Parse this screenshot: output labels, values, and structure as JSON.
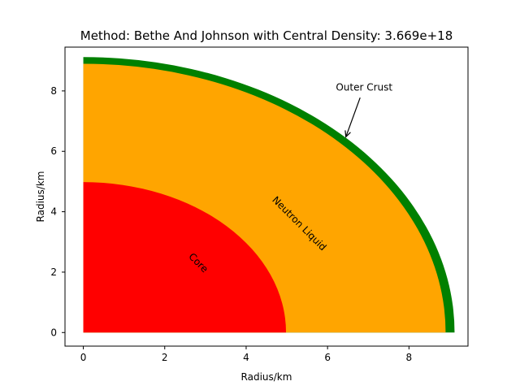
{
  "chart_data": {
    "type": "area",
    "title": "Method: Bethe And Johnson with Central Density: 3.669e+18",
    "xlabel": "Radius/km",
    "ylabel": "Radius/km",
    "xlim": [
      -0.45,
      9.45
    ],
    "ylim": [
      -0.45,
      9.45
    ],
    "xticks": [
      0,
      2,
      4,
      6,
      8
    ],
    "yticks": [
      0,
      2,
      4,
      6,
      8
    ],
    "grid": false,
    "layers": [
      {
        "name": "Outer Crust",
        "inner_radius": 8.9,
        "outer_radius": 9.12,
        "color": "#008000"
      },
      {
        "name": "Neutron Liquid",
        "inner_radius": 4.98,
        "outer_radius": 8.9,
        "color": "#ffa500"
      },
      {
        "name": "Core",
        "inner_radius": 0,
        "outer_radius": 4.98,
        "color": "#ff0000"
      }
    ],
    "annotations": [
      {
        "text": "Core",
        "x": 2.82,
        "y": 2.3,
        "rotation": -45
      },
      {
        "text": "Neutron Liquid",
        "x": 5.3,
        "y": 3.6,
        "rotation": -45
      },
      {
        "text": "Outer Crust",
        "x": 6.9,
        "y": 8.1,
        "arrow_to": [
          6.45,
          6.48
        ]
      }
    ]
  }
}
